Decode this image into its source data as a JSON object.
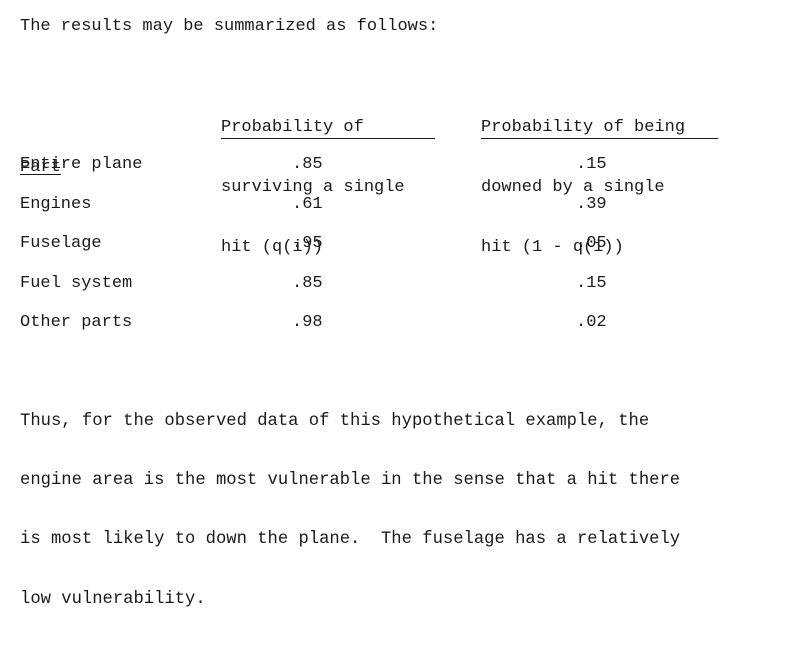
{
  "intro": "The results may be summarized as follows:",
  "table": {
    "headers": {
      "part": "Part",
      "survive": [
        "Probability of",
        "surviving a single",
        "hit (q(i))"
      ],
      "downed": [
        "Probability of being",
        "downed by a single",
        "hit (1 - q(i))"
      ]
    },
    "rows": [
      {
        "part": "Entire plane",
        "q": ".85",
        "d": ".15"
      },
      {
        "part": "Engines",
        "q": ".61",
        "d": ".39"
      },
      {
        "part": "Fuselage",
        "q": ".95",
        "d": ".05"
      },
      {
        "part": "Fuel system",
        "q": ".85",
        "d": ".15"
      },
      {
        "part": "Other parts",
        "q": ".98",
        "d": ".02"
      }
    ]
  },
  "conclusion": [
    "Thus, for the observed data of this hypothetical example, the",
    "engine area is the most vulnerable in the sense that a hit there",
    "is most likely to down the plane.  The fuselage has a relatively",
    "low vulnerability."
  ]
}
